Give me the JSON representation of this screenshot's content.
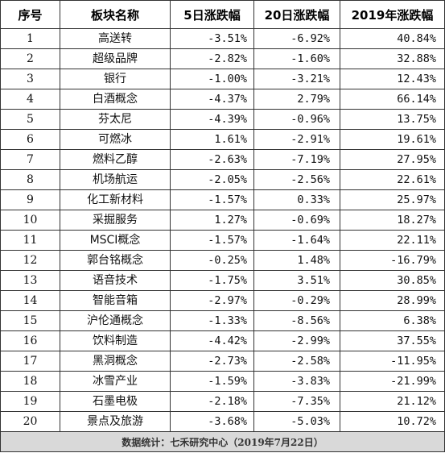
{
  "table": {
    "headers": [
      "序号",
      "板块名称",
      "5日涨跌幅",
      "20日涨跌幅",
      "2019年涨跌幅"
    ],
    "rows": [
      {
        "idx": "1",
        "name": "高送转",
        "d5": "-3.51%",
        "d20": "-6.92%",
        "y2019": "40.84%"
      },
      {
        "idx": "2",
        "name": "超级品牌",
        "d5": "-2.82%",
        "d20": "-1.60%",
        "y2019": "32.88%"
      },
      {
        "idx": "3",
        "name": "银行",
        "d5": "-1.00%",
        "d20": "-3.21%",
        "y2019": "12.43%"
      },
      {
        "idx": "4",
        "name": "白酒概念",
        "d5": "-4.37%",
        "d20": "2.79%",
        "y2019": "66.14%"
      },
      {
        "idx": "5",
        "name": "芬太尼",
        "d5": "-4.39%",
        "d20": "-0.96%",
        "y2019": "13.75%"
      },
      {
        "idx": "6",
        "name": "可燃冰",
        "d5": "1.61%",
        "d20": "-2.91%",
        "y2019": "19.61%"
      },
      {
        "idx": "7",
        "name": "燃料乙醇",
        "d5": "-2.63%",
        "d20": "-7.19%",
        "y2019": "27.95%"
      },
      {
        "idx": "8",
        "name": "机场航运",
        "d5": "-2.05%",
        "d20": "-2.56%",
        "y2019": "22.61%"
      },
      {
        "idx": "9",
        "name": "化工新材料",
        "d5": "-1.57%",
        "d20": "0.33%",
        "y2019": "25.97%"
      },
      {
        "idx": "10",
        "name": "采掘服务",
        "d5": "1.27%",
        "d20": "-0.69%",
        "y2019": "18.27%"
      },
      {
        "idx": "11",
        "name": "MSCI概念",
        "d5": "-1.57%",
        "d20": "-1.64%",
        "y2019": "22.11%"
      },
      {
        "idx": "12",
        "name": "郭台铭概念",
        "d5": "-0.25%",
        "d20": "1.48%",
        "y2019": "-16.79%"
      },
      {
        "idx": "13",
        "name": "语音技术",
        "d5": "-1.75%",
        "d20": "3.51%",
        "y2019": "30.85%"
      },
      {
        "idx": "14",
        "name": "智能音箱",
        "d5": "-2.97%",
        "d20": "-0.29%",
        "y2019": "28.99%"
      },
      {
        "idx": "15",
        "name": "沪伦通概念",
        "d5": "-1.33%",
        "d20": "-8.56%",
        "y2019": "6.38%"
      },
      {
        "idx": "16",
        "name": "饮料制造",
        "d5": "-4.42%",
        "d20": "-2.99%",
        "y2019": "37.55%"
      },
      {
        "idx": "17",
        "name": "黑洞概念",
        "d5": "-2.73%",
        "d20": "-2.58%",
        "y2019": "-11.95%"
      },
      {
        "idx": "18",
        "name": "冰雪产业",
        "d5": "-1.59%",
        "d20": "-3.83%",
        "y2019": "-21.99%"
      },
      {
        "idx": "19",
        "name": "石墨电极",
        "d5": "-2.18%",
        "d20": "-7.35%",
        "y2019": "21.12%"
      },
      {
        "idx": "20",
        "name": "景点及旅游",
        "d5": "-3.68%",
        "d20": "-5.03%",
        "y2019": "10.72%"
      }
    ],
    "footer": "数据统计：七禾研究中心（2019年7月22日）"
  },
  "colors": {
    "border": "#333333",
    "footer_background": "#d9d9d9",
    "background": "#ffffff"
  }
}
